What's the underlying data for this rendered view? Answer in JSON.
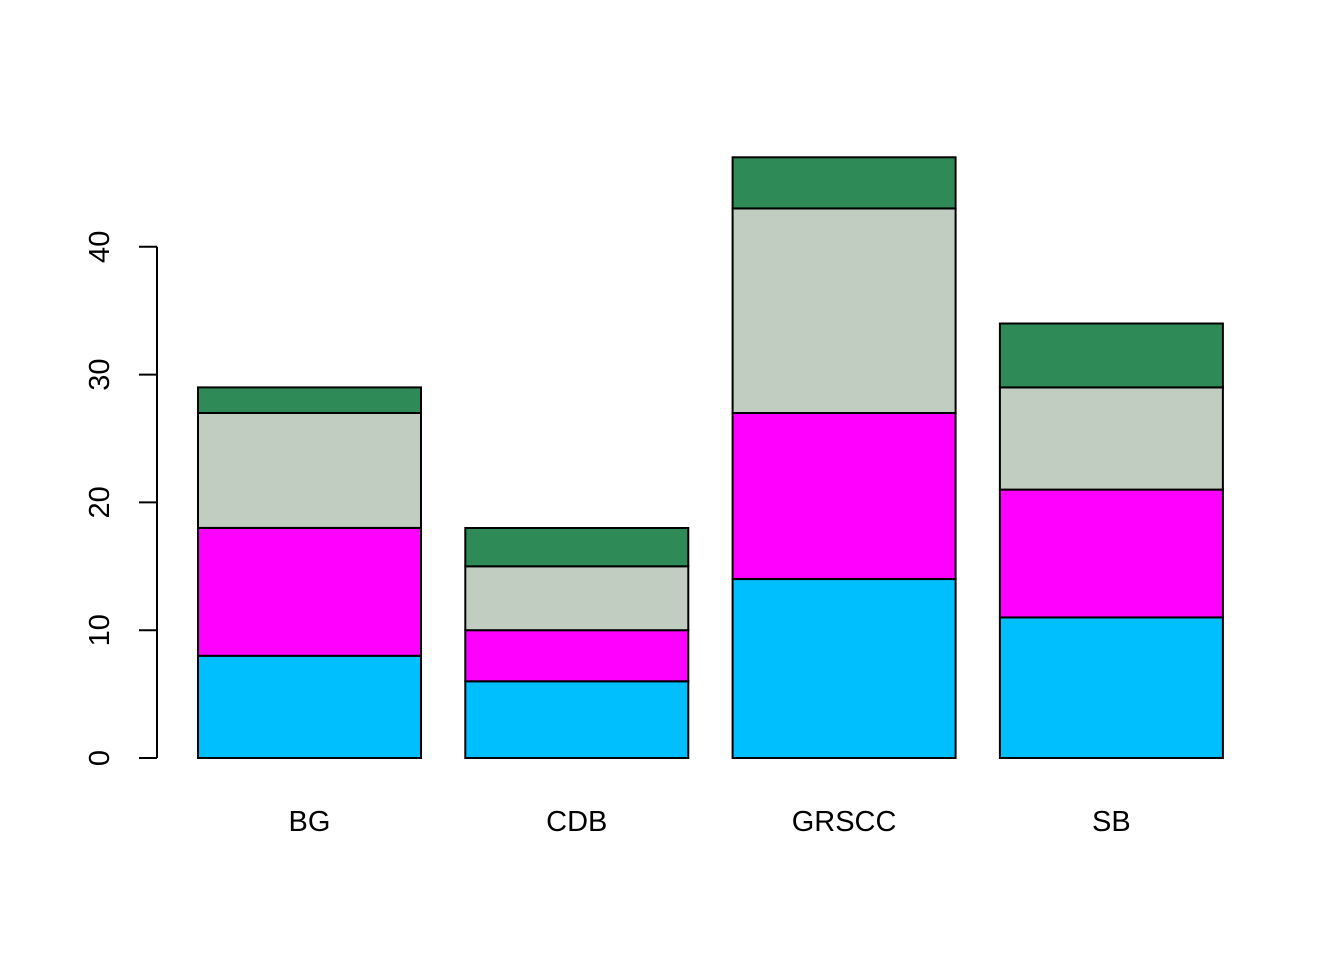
{
  "chart_data": {
    "type": "bar",
    "stacked": true,
    "categories": [
      "BG",
      "CDB",
      "GRSCC",
      "SB"
    ],
    "series": [
      {
        "values": [
          8,
          6,
          14,
          11
        ],
        "color": "#00BFFF"
      },
      {
        "values": [
          10,
          4,
          13,
          10
        ],
        "color": "#FF00FF"
      },
      {
        "values": [
          9,
          5,
          16,
          8
        ],
        "color": "#C1CDC1"
      },
      {
        "values": [
          2,
          3,
          4,
          5
        ],
        "color": "#2E8B57"
      }
    ],
    "title": "",
    "xlabel": "",
    "ylabel": "",
    "ylim": [
      0,
      47
    ],
    "yticks": [
      0,
      10,
      20,
      30,
      40
    ],
    "ytick_labels": [
      "0",
      "10",
      "20",
      "30",
      "40"
    ],
    "grid": false,
    "legend": "none",
    "bar_border_color": "#000000"
  }
}
